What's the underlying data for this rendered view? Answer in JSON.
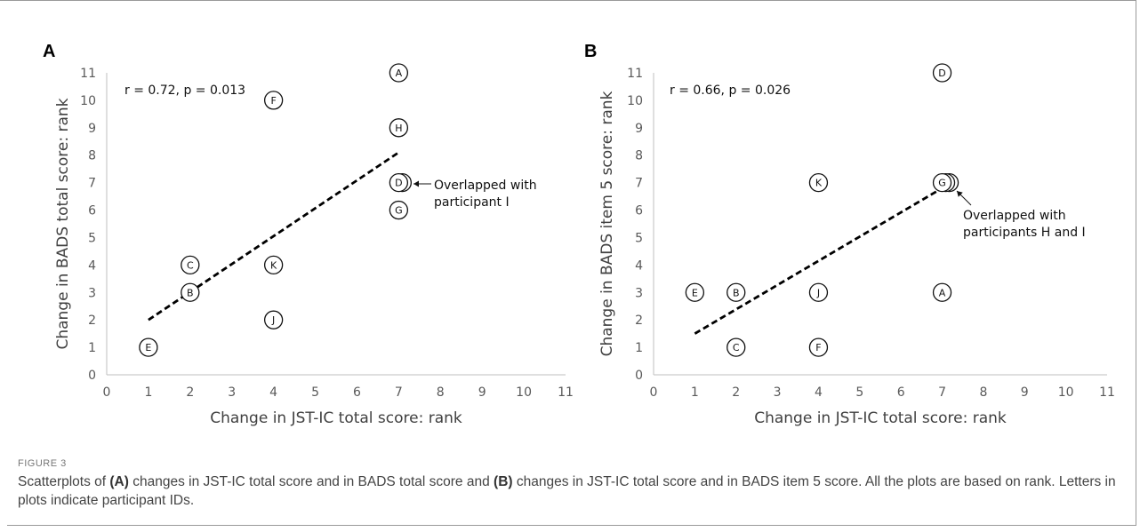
{
  "chart_data": [
    {
      "type": "scatter",
      "panel": "A",
      "xlabel": "Change in JST-IC total score: rank",
      "ylabel": "Change in BADS total score: rank",
      "xlim": [
        0,
        11
      ],
      "ylim": [
        0,
        11
      ],
      "xticks": [
        0,
        1,
        2,
        3,
        4,
        5,
        6,
        7,
        8,
        9,
        10,
        11
      ],
      "yticks": [
        0,
        1,
        2,
        3,
        4,
        5,
        6,
        7,
        8,
        9,
        10,
        11
      ],
      "grid": false,
      "annotation": "r = 0.72, p = 0.013",
      "points": [
        {
          "id": "A",
          "x": 7,
          "y": 11
        },
        {
          "id": "B",
          "x": 2,
          "y": 3
        },
        {
          "id": "C",
          "x": 2,
          "y": 4
        },
        {
          "id": "D",
          "x": 7,
          "y": 7
        },
        {
          "id": "E",
          "x": 1,
          "y": 1
        },
        {
          "id": "F",
          "x": 4,
          "y": 10
        },
        {
          "id": "G",
          "x": 7,
          "y": 6
        },
        {
          "id": "H",
          "x": 7,
          "y": 9
        },
        {
          "id": "I",
          "x": 7,
          "y": 7
        },
        {
          "id": "J",
          "x": 4,
          "y": 2
        },
        {
          "id": "K",
          "x": 4,
          "y": 4
        }
      ],
      "overlap_note": "Overlapped with\nparticipant I",
      "trendline": {
        "x": [
          1,
          7
        ],
        "y": [
          2.0,
          8.1
        ]
      }
    },
    {
      "type": "scatter",
      "panel": "B",
      "xlabel": "Change in JST-IC total score: rank",
      "ylabel": "Change in BADS item 5 score: rank",
      "xlim": [
        0,
        11
      ],
      "ylim": [
        0,
        11
      ],
      "xticks": [
        0,
        1,
        2,
        3,
        4,
        5,
        6,
        7,
        8,
        9,
        10,
        11
      ],
      "yticks": [
        0,
        1,
        2,
        3,
        4,
        5,
        6,
        7,
        8,
        9,
        10,
        11
      ],
      "grid": false,
      "annotation": "r = 0.66, p = 0.026",
      "points": [
        {
          "id": "A",
          "x": 7,
          "y": 3
        },
        {
          "id": "B",
          "x": 2,
          "y": 3
        },
        {
          "id": "C",
          "x": 2,
          "y": 1
        },
        {
          "id": "D",
          "x": 7,
          "y": 11
        },
        {
          "id": "E",
          "x": 1,
          "y": 3
        },
        {
          "id": "F",
          "x": 4,
          "y": 1
        },
        {
          "id": "G",
          "x": 7,
          "y": 7
        },
        {
          "id": "H",
          "x": 7,
          "y": 7
        },
        {
          "id": "I",
          "x": 7,
          "y": 7
        },
        {
          "id": "J",
          "x": 4,
          "y": 3
        },
        {
          "id": "K",
          "x": 4,
          "y": 7
        }
      ],
      "overlap_note": "Overlapped with\nparticipants H and I",
      "trendline": {
        "x": [
          1,
          7
        ],
        "y": [
          1.5,
          6.8
        ]
      }
    }
  ],
  "caption": {
    "figure_label": "FIGURE 3",
    "text_parts": [
      {
        "t": "Scatterplots of ",
        "b": false
      },
      {
        "t": "(A)",
        "b": true
      },
      {
        "t": " changes in JST-IC total score and in BADS total score and ",
        "b": false
      },
      {
        "t": "(B)",
        "b": true
      },
      {
        "t": " changes in JST-IC total score and in BADS item 5 score. All the plots are based on rank. Letters in plots indicate participant IDs.",
        "b": false
      }
    ]
  }
}
